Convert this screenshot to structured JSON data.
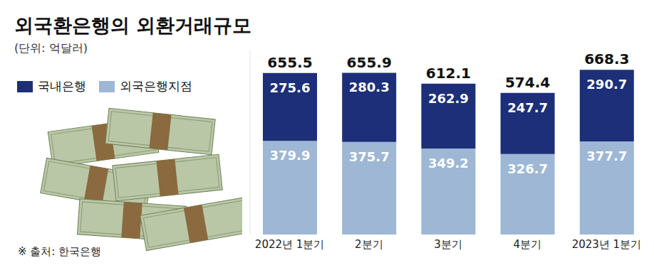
{
  "chart_data": {
    "type": "bar",
    "title": "외국환은행의 외환거래규모",
    "subtitle": "(단위: 억달러)",
    "source": "※ 출처: 한국은행",
    "categories": [
      "2022년 1분기",
      "2분기",
      "3분기",
      "4분기",
      "2023년 1분기"
    ],
    "series": [
      {
        "name": "국내은행",
        "color": "#1c2f78",
        "values": [
          275.6,
          280.3,
          262.9,
          247.7,
          290.7
        ]
      },
      {
        "name": "외국은행지점",
        "color": "#9db7d5",
        "values": [
          379.9,
          375.7,
          349.2,
          326.7,
          377.7
        ]
      }
    ],
    "totals": [
      655.5,
      655.9,
      612.1,
      574.4,
      668.3
    ],
    "stacked": true,
    "data_labels": true,
    "legend": "upper left",
    "tick_labels": "x",
    "grid": false,
    "ylim": [
      0,
      750
    ]
  }
}
